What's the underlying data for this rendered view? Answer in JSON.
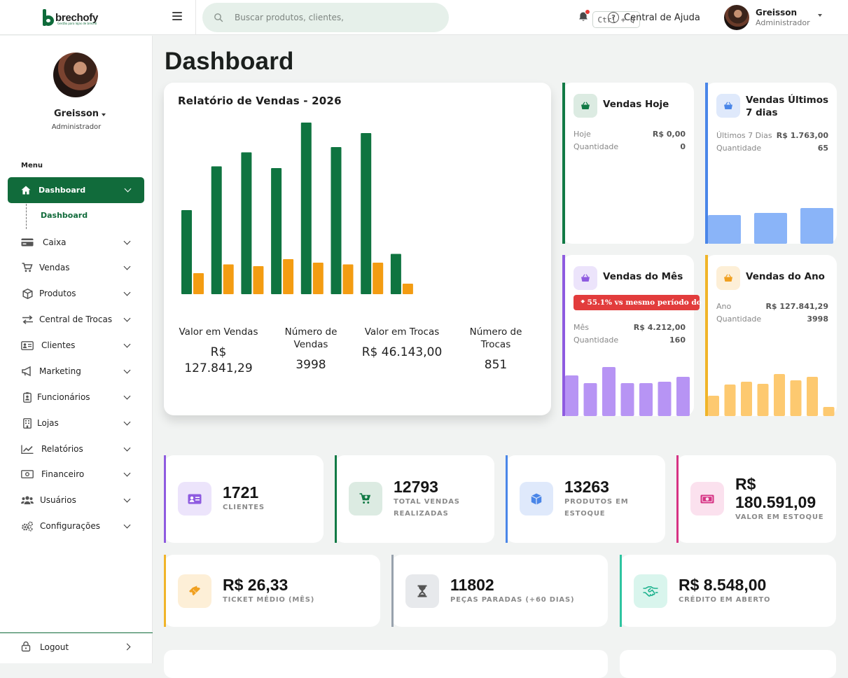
{
  "brand": {
    "name": "brechofy",
    "tagline": "Gestão para lojas de brechó"
  },
  "search": {
    "placeholder": "Buscar produtos, clientes,",
    "shortcut": "Ctrl + Q"
  },
  "header": {
    "help_label": "Central de Ajuda",
    "user_name": "Greisson",
    "user_role": "Administrador",
    "notification_dot_color": "#e53935"
  },
  "sidebar": {
    "user_name": "Greisson",
    "user_role": "Administrador",
    "menu_title": "Menu",
    "active_item": {
      "label": "Dashboard",
      "icon": "home-icon"
    },
    "active_subitem": "Dashboard",
    "items": [
      {
        "label": "Caixa",
        "icon": "credit-card-icon"
      },
      {
        "label": "Vendas",
        "icon": "cart-icon"
      },
      {
        "label": "Produtos",
        "icon": "box-icon"
      },
      {
        "label": "Central de Trocas",
        "icon": "exchange-icon"
      },
      {
        "label": "Clientes",
        "icon": "id-card-icon"
      },
      {
        "label": "Marketing",
        "icon": "megaphone-icon"
      },
      {
        "label": "Funcionários",
        "icon": "badge-icon"
      },
      {
        "label": "Lojas",
        "icon": "building-icon"
      },
      {
        "label": "Relatórios",
        "icon": "chart-line-icon"
      },
      {
        "label": "Financeiro",
        "icon": "money-icon"
      },
      {
        "label": "Usuários",
        "icon": "users-icon"
      },
      {
        "label": "Configurações",
        "icon": "gears-icon"
      }
    ],
    "logout_label": "Logout",
    "accent": "#116b3b"
  },
  "page": {
    "title": "Dashboard"
  },
  "report": {
    "title": "Relatório de Vendas - 2026",
    "stats": [
      {
        "label": "Valor em Vendas",
        "value": "R$ 127.841,29"
      },
      {
        "label": "Número de Vendas",
        "value": "3998"
      },
      {
        "label": "Valor em Trocas",
        "value": "R$ 46.143,00"
      },
      {
        "label": "Número de Trocas",
        "value": "851"
      }
    ]
  },
  "chart_data": {
    "type": "bar",
    "title": "Relatório de Vendas - 2026",
    "xlabel": "",
    "ylabel": "",
    "categories": [
      "",
      "",
      "",
      "",
      "",
      "",
      "",
      ""
    ],
    "ylim": [
      0,
      100
    ],
    "grid": false,
    "legend": "none",
    "series": [
      {
        "color": "#0f7440",
        "values": [
          48,
          73,
          81,
          72,
          98,
          84,
          92,
          23
        ]
      },
      {
        "color": "#f39c12",
        "values": [
          12,
          17,
          16,
          20,
          18,
          17,
          18,
          6
        ]
      }
    ]
  },
  "mini_cards": {
    "hoje": {
      "title": "Vendas Hoje",
      "rows": [
        {
          "label": "Hoje",
          "value": "R$ 0,00"
        },
        {
          "label": "Quantidade",
          "value": "0"
        }
      ],
      "accent": "#117a45",
      "icon": "basket-icon"
    },
    "semana": {
      "title": "Vendas Últimos 7 dias",
      "rows": [
        {
          "label": "Últimos 7 Dias",
          "value": "R$ 1.763,00"
        },
        {
          "label": "Quantidade",
          "value": "65"
        }
      ],
      "accent": "#4a86e8",
      "bar_color": "#8ab4f8",
      "bars": [
        41,
        44,
        51
      ],
      "icon": "basket-icon"
    },
    "mes": {
      "title": "Vendas do Mês",
      "alert": "55.1% vs mesmo período do",
      "rows": [
        {
          "label": "Mês",
          "value": "R$ 4.212,00"
        },
        {
          "label": "Quantidade",
          "value": "160"
        }
      ],
      "accent": "#8e5be0",
      "bar_color": "#b794f4",
      "bars": [
        58,
        47,
        70,
        47,
        47,
        49,
        56
      ],
      "icon": "basket-icon"
    },
    "ano": {
      "title": "Vendas do Ano",
      "rows": [
        {
          "label": "Ano",
          "value": "R$ 127.841,29"
        },
        {
          "label": "Quantidade",
          "value": "3998"
        }
      ],
      "accent": "#f0b429",
      "bar_color": "#fdc970",
      "bars": [
        29,
        45,
        49,
        46,
        60,
        51,
        56,
        13
      ],
      "icon": "basket-icon"
    }
  },
  "kpis": [
    {
      "value": "1721",
      "caption": "CLIENTES",
      "accent": "#8e5be0",
      "icon": "id-card-icon"
    },
    {
      "value": "12793",
      "caption": "TOTAL VENDAS REALIZADAS",
      "accent": "#117a45",
      "icon": "cart-plus-icon"
    },
    {
      "value": "13263",
      "caption": "PRODUTOS EM ESTOQUE",
      "accent": "#4a86e8",
      "icon": "cube-icon"
    },
    {
      "value": "R$ 180.591,09",
      "caption": "VALOR EM ESTOQUE",
      "accent": "#d63384",
      "icon": "money-icon"
    },
    {
      "value": "R$ 26,33",
      "caption": "TICKET MÉDIO (MÊS)",
      "accent": "#f0b429",
      "icon": "ticket-icon"
    },
    {
      "value": "11802",
      "caption": "PEÇAS PARADAS (+60 DIAS)",
      "accent": "#98a2ad",
      "icon": "hourglass-icon"
    },
    {
      "value": "R$ 8.548,00",
      "caption": "CRÉDITO EM ABERTO",
      "accent": "#2ec4a0",
      "icon": "handshake-icon"
    }
  ]
}
